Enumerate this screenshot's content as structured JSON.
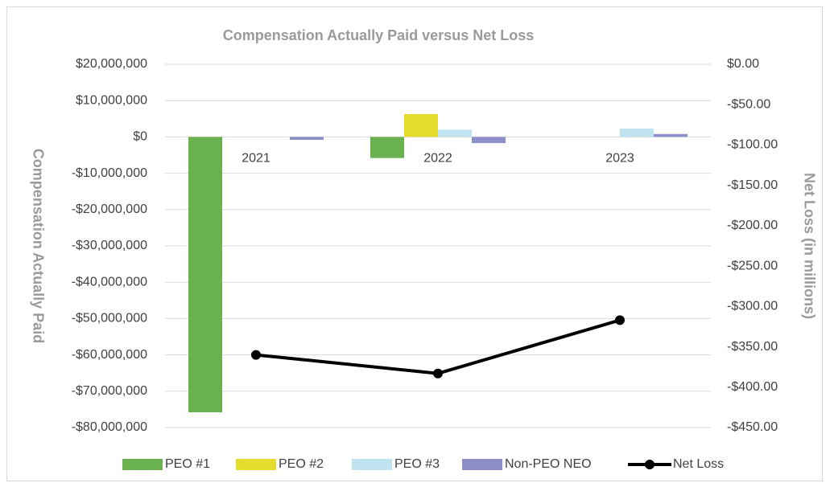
{
  "chart_data": {
    "type": "bar",
    "title": "Compensation Actually Paid versus Net Loss",
    "y_label": "Compensation Actually Paid",
    "y2_label": "Net Loss (in millions)",
    "categories": [
      "2021",
      "2022",
      "2023"
    ],
    "series": [
      {
        "name": "PEO #1",
        "color": "#6ab150",
        "values": [
          -75800000,
          -5800000,
          null
        ]
      },
      {
        "name": "PEO #2",
        "color": "#e6dc2e",
        "values": [
          null,
          6300000,
          null
        ]
      },
      {
        "name": "PEO #3",
        "color": "#bfe3ef",
        "values": [
          null,
          2000000,
          2300000
        ]
      },
      {
        "name": "Non-PEO NEO",
        "color": "#8e8ec8",
        "values": [
          -800000,
          -1700000,
          800000
        ]
      },
      {
        "name": "Net Loss",
        "color": "#000000",
        "type": "line",
        "axis": "y2",
        "values": [
          -360,
          -383,
          -317
        ]
      }
    ],
    "ylim": [
      -80000000,
      20000000
    ],
    "yticks": [
      {
        "value": 20000000,
        "label": "$20,000,000"
      },
      {
        "value": 10000000,
        "label": "$10,000,000"
      },
      {
        "value": 0,
        "label": "$0"
      },
      {
        "value": -10000000,
        "label": "-$10,000,000"
      },
      {
        "value": -20000000,
        "label": "-$20,000,000"
      },
      {
        "value": -30000000,
        "label": "-$30,000,000"
      },
      {
        "value": -40000000,
        "label": "-$40,000,000"
      },
      {
        "value": -50000000,
        "label": "-$50,000,000"
      },
      {
        "value": -60000000,
        "label": "-$60,000,000"
      },
      {
        "value": -70000000,
        "label": "-$70,000,000"
      },
      {
        "value": -80000000,
        "label": "-$80,000,000"
      }
    ],
    "y2lim": [
      -450,
      0
    ],
    "y2ticks": [
      {
        "value": 0,
        "label": "$0.00"
      },
      {
        "value": -50,
        "label": "-$50.00"
      },
      {
        "value": -100,
        "label": "-$100.00"
      },
      {
        "value": -150,
        "label": "-$150.00"
      },
      {
        "value": -200,
        "label": "-$200.00"
      },
      {
        "value": -250,
        "label": "-$250.00"
      },
      {
        "value": -300,
        "label": "-$300.00"
      },
      {
        "value": -350,
        "label": "-$350.00"
      },
      {
        "value": -400,
        "label": "-$400.00"
      },
      {
        "value": -450,
        "label": "-$450.00"
      }
    ],
    "grid": true,
    "legend": "bottom"
  }
}
